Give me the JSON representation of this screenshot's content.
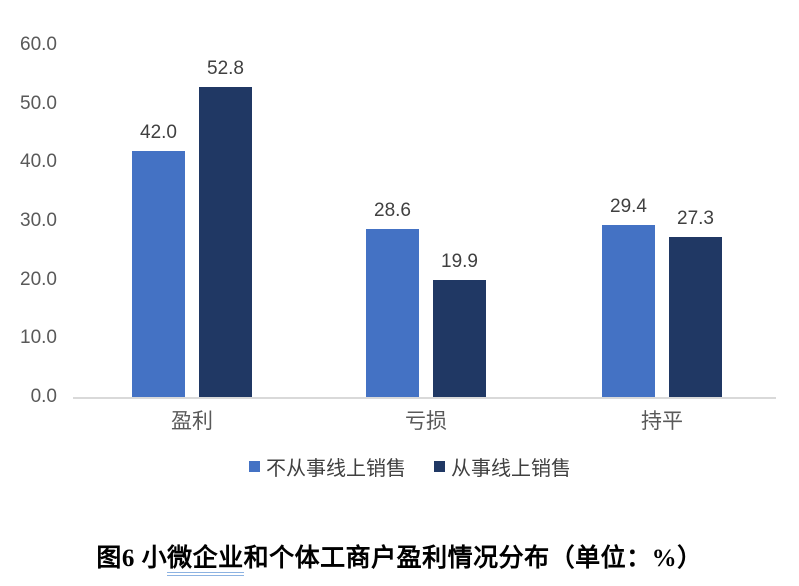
{
  "chart_data": {
    "type": "bar",
    "title": "图6 小微企业和个体工商户盈利情况分布（单位：%）",
    "categories": [
      "盈利",
      "亏损",
      "持平"
    ],
    "series": [
      {
        "name": "不从事线上销售",
        "color": "#4472C4",
        "values": [
          42.0,
          28.6,
          29.4
        ]
      },
      {
        "name": "从事线上销售",
        "color": "#203864",
        "values": [
          52.8,
          19.9,
          27.3
        ]
      }
    ],
    "data_label_decimals": 1,
    "ylim": [
      0,
      60
    ],
    "y_tick_step": 10,
    "y_tick_labels": [
      "0.0",
      "10.0",
      "20.0",
      "30.0",
      "40.0",
      "50.0",
      "60.0"
    ],
    "grid": false,
    "legend_position": "bottom",
    "axis_line_color": "#d9d9d9",
    "tick_label_color": "#595959",
    "data_label_color": "#404040"
  },
  "caption": {
    "prefix": "图6 小",
    "underlined": "微企业",
    "suffix": "和个体工商户盈利情况分布（单位：%）"
  }
}
